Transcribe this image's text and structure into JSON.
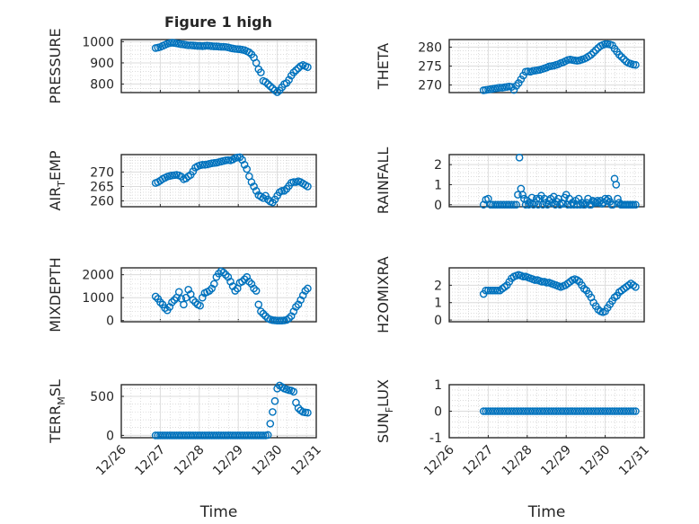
{
  "title": "Figure 1 high",
  "date_ticks": [
    "12/26",
    "12/27",
    "12/28",
    "12/29",
    "12/30",
    "12/31"
  ],
  "colors": {
    "marker": "#0072BD",
    "axes": "#262626",
    "grid": "#dcdcdc"
  },
  "chart_data": [
    {
      "type": "scatter",
      "ylabel": "PRESSURE",
      "ylabel_sub": "",
      "ylabel_post": "",
      "xlim": [
        0,
        5
      ],
      "ylim": [
        760,
        1010
      ],
      "yticks": [
        800,
        900,
        1000
      ],
      "ytick_labels": [
        "800",
        "900",
        "1000"
      ],
      "x": [
        0.88,
        0.94,
        1.0,
        1.06,
        1.12,
        1.18,
        1.24,
        1.3,
        1.36,
        1.42,
        1.48,
        1.54,
        1.6,
        1.66,
        1.72,
        1.78,
        1.84,
        1.9,
        1.96,
        2.02,
        2.08,
        2.14,
        2.2,
        2.26,
        2.32,
        2.38,
        2.44,
        2.5,
        2.56,
        2.62,
        2.68,
        2.74,
        2.8,
        2.86,
        2.92,
        2.98,
        3.04,
        3.1,
        3.16,
        3.22,
        3.28,
        3.34,
        3.4,
        3.46,
        3.52,
        3.58,
        3.64,
        3.7,
        3.76,
        3.82,
        3.88,
        3.94,
        4.0,
        4.06,
        4.12,
        4.18,
        4.24,
        4.3,
        4.36,
        4.42,
        4.48,
        4.54,
        4.6,
        4.66,
        4.72,
        4.78
      ],
      "y": [
        970,
        972,
        975,
        980,
        985,
        990,
        993,
        995,
        994,
        992,
        990,
        988,
        987,
        985,
        983,
        983,
        982,
        981,
        980,
        980,
        979,
        980,
        981,
        980,
        979,
        978,
        978,
        977,
        976,
        976,
        975,
        973,
        970,
        968,
        966,
        965,
        964,
        962,
        960,
        955,
        950,
        940,
        925,
        900,
        870,
        855,
        815,
        810,
        800,
        790,
        780,
        770,
        762,
        770,
        785,
        800,
        805,
        820,
        840,
        855,
        865,
        875,
        885,
        890,
        885,
        880
      ],
      "xlabel": ""
    },
    {
      "type": "scatter",
      "ylabel": "THETA",
      "ylabel_sub": "",
      "ylabel_post": "",
      "xlim": [
        0,
        5
      ],
      "ylim": [
        268,
        282
      ],
      "yticks": [
        270,
        275,
        280
      ],
      "ytick_labels": [
        "270",
        "275",
        "280"
      ],
      "x": [
        0.88,
        0.94,
        1.0,
        1.06,
        1.12,
        1.18,
        1.24,
        1.3,
        1.36,
        1.42,
        1.48,
        1.54,
        1.6,
        1.66,
        1.72,
        1.78,
        1.84,
        1.9,
        1.96,
        2.02,
        2.08,
        2.14,
        2.2,
        2.26,
        2.32,
        2.38,
        2.44,
        2.5,
        2.56,
        2.62,
        2.68,
        2.74,
        2.8,
        2.86,
        2.92,
        2.98,
        3.04,
        3.1,
        3.16,
        3.22,
        3.28,
        3.34,
        3.4,
        3.46,
        3.52,
        3.58,
        3.64,
        3.7,
        3.76,
        3.82,
        3.88,
        3.94,
        4.0,
        4.06,
        4.12,
        4.18,
        4.24,
        4.3,
        4.36,
        4.42,
        4.48,
        4.54,
        4.6,
        4.66,
        4.72,
        4.78
      ],
      "y": [
        268.6,
        268.7,
        268.8,
        268.9,
        269.0,
        269.1,
        269.2,
        269.3,
        269.3,
        269.4,
        269.5,
        269.6,
        269.5,
        268.7,
        269.8,
        270.5,
        271.5,
        272.5,
        273.5,
        273.6,
        273.5,
        273.7,
        273.8,
        273.9,
        274.0,
        274.2,
        274.4,
        274.6,
        274.9,
        275.0,
        275.1,
        275.3,
        275.5,
        275.8,
        276.0,
        276.3,
        276.6,
        276.7,
        276.6,
        276.5,
        276.4,
        276.5,
        276.7,
        276.9,
        277.2,
        277.6,
        278.0,
        278.6,
        279.2,
        279.8,
        280.3,
        280.6,
        280.8,
        280.8,
        280.7,
        280.5,
        279.6,
        278.8,
        278.0,
        277.4,
        276.8,
        276.2,
        275.8,
        275.6,
        275.4,
        275.3
      ],
      "xlabel": ""
    },
    {
      "type": "scatter",
      "ylabel": "AIR",
      "ylabel_sub": "T",
      "ylabel_post": "EMP",
      "xlim": [
        0,
        5
      ],
      "ylim": [
        258,
        276
      ],
      "yticks": [
        260,
        265,
        270
      ],
      "ytick_labels": [
        "260",
        "265",
        "270"
      ],
      "x": [
        0.88,
        0.94,
        1.0,
        1.06,
        1.12,
        1.18,
        1.24,
        1.3,
        1.36,
        1.42,
        1.48,
        1.54,
        1.6,
        1.66,
        1.72,
        1.78,
        1.84,
        1.9,
        1.96,
        2.02,
        2.08,
        2.14,
        2.2,
        2.26,
        2.32,
        2.38,
        2.44,
        2.5,
        2.56,
        2.62,
        2.68,
        2.74,
        2.8,
        2.86,
        2.92,
        2.98,
        3.04,
        3.1,
        3.16,
        3.22,
        3.28,
        3.34,
        3.4,
        3.46,
        3.52,
        3.58,
        3.64,
        3.7,
        3.76,
        3.82,
        3.88,
        3.94,
        4.0,
        4.06,
        4.12,
        4.18,
        4.24,
        4.3,
        4.36,
        4.42,
        4.48,
        4.54,
        4.6,
        4.66,
        4.72,
        4.78
      ],
      "y": [
        266.2,
        266.5,
        267.0,
        267.6,
        268.0,
        268.4,
        268.6,
        268.8,
        268.9,
        269.0,
        268.8,
        268.4,
        267.5,
        267.8,
        268.5,
        269.0,
        270.2,
        271.5,
        272.0,
        272.3,
        272.5,
        272.5,
        272.6,
        272.8,
        273.0,
        273.1,
        273.2,
        273.4,
        273.6,
        273.8,
        274.0,
        274.1,
        274.0,
        274.3,
        274.8,
        275.0,
        275.1,
        274.2,
        272.5,
        271.0,
        268.5,
        266.5,
        265.0,
        263.5,
        262.0,
        261.5,
        261.0,
        261.8,
        260.5,
        259.8,
        259.5,
        260.5,
        261.8,
        263.0,
        263.5,
        263.5,
        264.2,
        265.2,
        266.3,
        266.5,
        266.5,
        266.8,
        266.5,
        266.0,
        265.5,
        265.0
      ],
      "xlabel": ""
    },
    {
      "type": "scatter",
      "ylabel": "RAINFALL",
      "ylabel_sub": "",
      "ylabel_post": "",
      "xlim": [
        0,
        5
      ],
      "ylim": [
        -0.1,
        2.5
      ],
      "yticks": [
        0,
        1,
        2
      ],
      "ytick_labels": [
        "0",
        "1",
        "2"
      ],
      "x": [
        0.88,
        0.94,
        1.0,
        1.06,
        1.12,
        1.18,
        1.24,
        1.3,
        1.36,
        1.42,
        1.48,
        1.54,
        1.6,
        1.66,
        1.72,
        1.76,
        1.8,
        1.84,
        1.88,
        1.92,
        1.96,
        2.0,
        2.04,
        2.08,
        2.12,
        2.16,
        2.2,
        2.24,
        2.28,
        2.32,
        2.36,
        2.4,
        2.44,
        2.48,
        2.52,
        2.56,
        2.6,
        2.64,
        2.68,
        2.72,
        2.76,
        2.8,
        2.84,
        2.88,
        2.92,
        2.96,
        3.0,
        3.04,
        3.08,
        3.12,
        3.16,
        3.2,
        3.24,
        3.28,
        3.32,
        3.36,
        3.4,
        3.44,
        3.48,
        3.52,
        3.56,
        3.6,
        3.64,
        3.68,
        3.72,
        3.76,
        3.8,
        3.84,
        3.88,
        3.92,
        3.96,
        4.0,
        4.04,
        4.08,
        4.12,
        4.16,
        4.2,
        4.24,
        4.28,
        4.32,
        4.36,
        4.4,
        4.44,
        4.48,
        4.52,
        4.56,
        4.6,
        4.64,
        4.68,
        4.72,
        4.78
      ],
      "y": [
        0,
        0.25,
        0.3,
        0,
        0,
        0,
        0,
        0,
        0,
        0,
        0,
        0,
        0,
        0,
        0,
        0.5,
        2.35,
        0.8,
        0.5,
        0.3,
        0,
        0.2,
        0,
        0.1,
        0.35,
        0,
        0.1,
        0.3,
        0,
        0.3,
        0.45,
        0,
        0.3,
        0.1,
        0,
        0.2,
        0.3,
        0.1,
        0.4,
        0,
        0.15,
        0.3,
        0,
        0.1,
        0.05,
        0.35,
        0.5,
        0,
        0.3,
        0,
        0.1,
        0,
        0.2,
        0,
        0.3,
        0,
        0.1,
        0,
        0,
        0.1,
        0.3,
        0,
        0,
        0.2,
        0.15,
        0.1,
        0.2,
        0.1,
        0.2,
        0.05,
        0.1,
        0.3,
        0.2,
        0.3,
        0.15,
        0,
        0,
        1.3,
        1.0,
        0.3,
        0.1,
        0,
        0,
        0,
        0,
        0,
        0,
        0,
        0,
        0,
        0
      ],
      "xlabel": ""
    },
    {
      "type": "scatter",
      "ylabel": "MIXDEPTH",
      "ylabel_sub": "",
      "ylabel_post": "",
      "xlim": [
        0,
        5
      ],
      "ylim": [
        -50,
        2300
      ],
      "yticks": [
        0,
        1000,
        2000
      ],
      "ytick_labels": [
        "0",
        "1000",
        "2000"
      ],
      "x": [
        0.88,
        0.94,
        1.0,
        1.06,
        1.12,
        1.18,
        1.24,
        1.3,
        1.36,
        1.42,
        1.48,
        1.54,
        1.6,
        1.66,
        1.72,
        1.78,
        1.84,
        1.9,
        1.96,
        2.02,
        2.08,
        2.14,
        2.2,
        2.26,
        2.32,
        2.38,
        2.44,
        2.5,
        2.56,
        2.62,
        2.68,
        2.74,
        2.8,
        2.86,
        2.92,
        2.98,
        3.04,
        3.1,
        3.16,
        3.22,
        3.28,
        3.34,
        3.4,
        3.46,
        3.52,
        3.58,
        3.64,
        3.7,
        3.76,
        3.82,
        3.88,
        3.94,
        4.0,
        4.06,
        4.12,
        4.18,
        4.24,
        4.3,
        4.36,
        4.42,
        4.48,
        4.54,
        4.6,
        4.66,
        4.72,
        4.78
      ],
      "y": [
        1050,
        950,
        800,
        700,
        550,
        450,
        600,
        800,
        900,
        1000,
        1250,
        950,
        700,
        1000,
        1350,
        1150,
        900,
        800,
        700,
        650,
        1000,
        1200,
        1250,
        1300,
        1400,
        1600,
        1900,
        2050,
        2150,
        2100,
        2000,
        1900,
        1700,
        1500,
        1300,
        1400,
        1650,
        1700,
        1800,
        1900,
        1700,
        1600,
        1400,
        1300,
        700,
        400,
        300,
        200,
        100,
        50,
        20,
        10,
        0,
        0,
        0,
        10,
        30,
        100,
        200,
        400,
        600,
        700,
        900,
        1100,
        1300,
        1400
      ],
      "xlabel": ""
    },
    {
      "type": "scatter",
      "ylabel": "H2OMIXRA",
      "ylabel_sub": "",
      "ylabel_post": "",
      "xlim": [
        0,
        5
      ],
      "ylim": [
        -0.1,
        3.0
      ],
      "yticks": [
        0,
        1,
        2
      ],
      "ytick_labels": [
        "0",
        "1",
        "2"
      ],
      "x": [
        0.88,
        0.94,
        1.0,
        1.06,
        1.12,
        1.18,
        1.24,
        1.3,
        1.36,
        1.42,
        1.48,
        1.54,
        1.6,
        1.66,
        1.72,
        1.78,
        1.84,
        1.9,
        1.96,
        2.02,
        2.08,
        2.14,
        2.2,
        2.26,
        2.32,
        2.38,
        2.44,
        2.5,
        2.56,
        2.62,
        2.68,
        2.74,
        2.8,
        2.86,
        2.92,
        2.98,
        3.04,
        3.1,
        3.16,
        3.22,
        3.28,
        3.34,
        3.4,
        3.46,
        3.52,
        3.58,
        3.64,
        3.7,
        3.76,
        3.82,
        3.88,
        3.94,
        4.0,
        4.06,
        4.12,
        4.18,
        4.24,
        4.3,
        4.36,
        4.42,
        4.48,
        4.54,
        4.6,
        4.66,
        4.72,
        4.78
      ],
      "y": [
        1.5,
        1.7,
        1.7,
        1.7,
        1.7,
        1.7,
        1.7,
        1.7,
        1.8,
        1.9,
        2.0,
        2.2,
        2.4,
        2.5,
        2.55,
        2.6,
        2.55,
        2.5,
        2.5,
        2.45,
        2.4,
        2.35,
        2.3,
        2.3,
        2.25,
        2.2,
        2.2,
        2.15,
        2.15,
        2.1,
        2.05,
        2.0,
        1.95,
        1.9,
        1.95,
        2.0,
        2.1,
        2.2,
        2.3,
        2.35,
        2.3,
        2.2,
        2.0,
        1.8,
        1.7,
        1.5,
        1.3,
        1.0,
        0.8,
        0.6,
        0.5,
        0.45,
        0.5,
        0.7,
        0.9,
        1.1,
        1.3,
        1.4,
        1.6,
        1.7,
        1.8,
        1.9,
        2.0,
        2.1,
        2.0,
        1.9
      ],
      "xlabel": ""
    },
    {
      "type": "scatter",
      "ylabel": "TERR",
      "ylabel_sub": "M",
      "ylabel_post": "SL",
      "xlim": [
        0,
        5
      ],
      "ylim": [
        -30,
        650
      ],
      "yticks": [
        0,
        500
      ],
      "ytick_labels": [
        "0",
        "500"
      ],
      "x": [
        0.88,
        0.94,
        1.0,
        1.06,
        1.12,
        1.18,
        1.24,
        1.3,
        1.36,
        1.42,
        1.48,
        1.54,
        1.6,
        1.66,
        1.72,
        1.78,
        1.84,
        1.9,
        1.96,
        2.02,
        2.08,
        2.14,
        2.2,
        2.26,
        2.32,
        2.38,
        2.44,
        2.5,
        2.56,
        2.62,
        2.68,
        2.74,
        2.8,
        2.86,
        2.92,
        2.98,
        3.04,
        3.1,
        3.16,
        3.22,
        3.28,
        3.34,
        3.4,
        3.46,
        3.52,
        3.58,
        3.64,
        3.7,
        3.76,
        3.82,
        3.88,
        3.94,
        4.0,
        4.06,
        4.12,
        4.18,
        4.24,
        4.3,
        4.36,
        4.42,
        4.48,
        4.54,
        4.6,
        4.66,
        4.72,
        4.78
      ],
      "y": [
        0,
        0,
        0,
        0,
        0,
        0,
        0,
        0,
        0,
        0,
        0,
        0,
        0,
        0,
        0,
        0,
        0,
        0,
        0,
        0,
        0,
        0,
        0,
        0,
        0,
        0,
        0,
        0,
        0,
        0,
        0,
        0,
        0,
        0,
        0,
        0,
        0,
        0,
        0,
        0,
        0,
        0,
        0,
        0,
        0,
        0,
        0,
        0,
        5,
        150,
        300,
        440,
        600,
        640,
        620,
        600,
        590,
        580,
        575,
        560,
        420,
        350,
        320,
        300,
        295,
        290
      ],
      "xlabel": "Time"
    },
    {
      "type": "scatter",
      "ylabel": "SUN",
      "ylabel_sub": "F",
      "ylabel_post": "LUX",
      "xlim": [
        0,
        5
      ],
      "ylim": [
        -1,
        1
      ],
      "yticks": [
        -1,
        0,
        1
      ],
      "ytick_labels": [
        "-1",
        "0",
        "1"
      ],
      "x": [
        0.88,
        0.94,
        1.0,
        1.06,
        1.12,
        1.18,
        1.24,
        1.3,
        1.36,
        1.42,
        1.48,
        1.54,
        1.6,
        1.66,
        1.72,
        1.78,
        1.84,
        1.9,
        1.96,
        2.02,
        2.08,
        2.14,
        2.2,
        2.26,
        2.32,
        2.38,
        2.44,
        2.5,
        2.56,
        2.62,
        2.68,
        2.74,
        2.8,
        2.86,
        2.92,
        2.98,
        3.04,
        3.1,
        3.16,
        3.22,
        3.28,
        3.34,
        3.4,
        3.46,
        3.52,
        3.58,
        3.64,
        3.7,
        3.76,
        3.82,
        3.88,
        3.94,
        4.0,
        4.06,
        4.12,
        4.18,
        4.24,
        4.3,
        4.36,
        4.42,
        4.48,
        4.54,
        4.6,
        4.66,
        4.72,
        4.78
      ],
      "y": [
        0,
        0,
        0,
        0,
        0,
        0,
        0,
        0,
        0,
        0,
        0,
        0,
        0,
        0,
        0,
        0,
        0,
        0,
        0,
        0,
        0,
        0,
        0,
        0,
        0,
        0,
        0,
        0,
        0,
        0,
        0,
        0,
        0,
        0,
        0,
        0,
        0,
        0,
        0,
        0,
        0,
        0,
        0,
        0,
        0,
        0,
        0,
        0,
        0,
        0,
        0,
        0,
        0,
        0,
        0,
        0,
        0,
        0,
        0,
        0,
        0,
        0,
        0,
        0,
        0,
        0
      ],
      "xlabel": "Time"
    }
  ]
}
